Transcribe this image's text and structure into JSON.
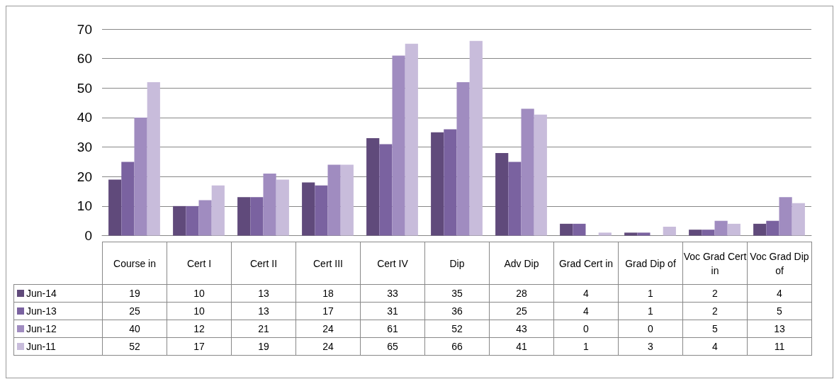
{
  "chart_data": {
    "type": "bar",
    "categories": [
      "Course in",
      "Cert I",
      "Cert II",
      "Cert III",
      "Cert IV",
      "Dip",
      "Adv Dip",
      "Grad Cert in",
      "Grad Dip of",
      "Voc Grad Cert in",
      "Voc Grad Dip of"
    ],
    "series": [
      {
        "name": "Jun-14",
        "color": "#604a7b",
        "values": [
          19,
          10,
          13,
          18,
          33,
          35,
          28,
          4,
          1,
          2,
          4
        ]
      },
      {
        "name": "Jun-13",
        "color": "#7a62a0",
        "values": [
          25,
          10,
          13,
          17,
          31,
          36,
          25,
          4,
          1,
          2,
          5
        ]
      },
      {
        "name": "Jun-12",
        "color": "#a08cc0",
        "values": [
          40,
          12,
          21,
          24,
          61,
          52,
          43,
          0,
          0,
          5,
          13
        ]
      },
      {
        "name": "Jun-11",
        "color": "#c8bcdb",
        "values": [
          52,
          17,
          19,
          24,
          65,
          66,
          41,
          1,
          3,
          4,
          11
        ]
      }
    ],
    "ylim": [
      0,
      70
    ],
    "yticks": [
      0,
      10,
      20,
      30,
      40,
      50,
      60,
      70
    ],
    "grid": "y",
    "legend": "bottom left",
    "data_labels": true
  }
}
